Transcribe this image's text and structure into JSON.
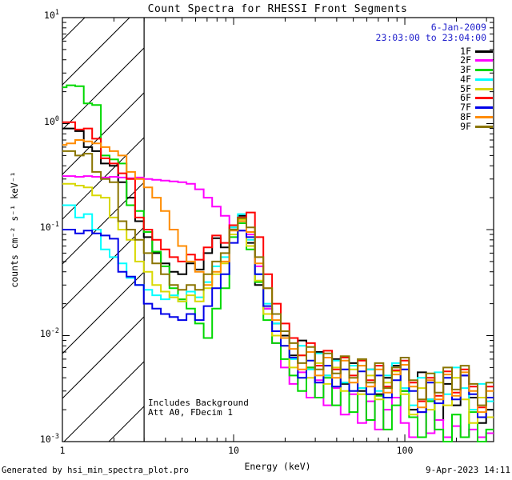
{
  "header": {
    "date": "6-Jan-2009",
    "time_range": "23:03:00 to 23:04:00",
    "text_color": "#2222cc"
  },
  "annotations": {
    "background_note": "Includes Background",
    "attenuator_note": "Att A0, FDecim 1"
  },
  "footer": {
    "generator": "Generated by hsi_min_spectra_plot.pro",
    "render_timestamp": "9-Apr-2023 14:11"
  },
  "chart_data": {
    "type": "line",
    "line_style": "histogram-step",
    "title": "Count Spectra for RHESSI Front Segments",
    "xlabel": "Energy (keV)",
    "ylabel": "counts cm⁻² s⁻¹ keV⁻¹",
    "x_scale": "log",
    "y_scale": "log",
    "xlim": [
      1,
      330
    ],
    "ylim": [
      0.001,
      10
    ],
    "grid": false,
    "legend_position": "top-right-outside",
    "x_ticks": [
      {
        "value": 1,
        "label": "1"
      },
      {
        "value": 10,
        "label": "10"
      },
      {
        "value": 100,
        "label": "100"
      }
    ],
    "y_ticks": [
      {
        "value": 10,
        "base": "10",
        "exponent": "1"
      },
      {
        "value": 1,
        "base": "10",
        "exponent": "0"
      },
      {
        "value": 0.1,
        "base": "10",
        "exponent": "-1"
      },
      {
        "value": 0.01,
        "base": "10",
        "exponent": "-2"
      },
      {
        "value": 0.001,
        "base": "10",
        "exponent": "-3"
      }
    ],
    "hatched_region_kev": [
      1,
      3
    ],
    "energies_kev": [
      1.0,
      1.12,
      1.26,
      1.41,
      1.58,
      1.78,
      2.0,
      2.24,
      2.51,
      2.82,
      3.16,
      3.55,
      3.98,
      4.47,
      5.01,
      5.62,
      6.31,
      7.08,
      7.94,
      8.91,
      10.0,
      11.2,
      12.6,
      14.1,
      15.8,
      17.8,
      20.0,
      22.4,
      25.1,
      28.2,
      31.6,
      35.5,
      39.8,
      44.7,
      50.1,
      56.2,
      63.1,
      70.8,
      79.4,
      89.1,
      100,
      112,
      126,
      141,
      158,
      178,
      200,
      224,
      251,
      282,
      316
    ],
    "series": [
      {
        "name": "1F",
        "color": "#000000",
        "values": [
          0.9,
          0.9,
          0.85,
          0.6,
          0.55,
          0.42,
          0.4,
          0.28,
          0.2,
          0.12,
          0.085,
          0.06,
          0.048,
          0.04,
          0.038,
          0.048,
          0.042,
          0.06,
          0.083,
          0.068,
          0.105,
          0.135,
          0.075,
          0.03,
          0.018,
          0.013,
          0.01,
          0.0065,
          0.009,
          0.005,
          0.007,
          0.0042,
          0.006,
          0.0035,
          0.0055,
          0.003,
          0.0048,
          0.0028,
          0.004,
          0.0052,
          0.003,
          0.002,
          0.0045,
          0.0025,
          0.0016,
          0.0035,
          0.0022,
          0.0042,
          0.0026,
          0.0015,
          0.002
        ]
      },
      {
        "name": "2F",
        "color": "#ff00ff",
        "values": [
          0.32,
          0.32,
          0.315,
          0.32,
          0.315,
          0.31,
          0.315,
          0.31,
          0.305,
          0.31,
          0.3,
          0.295,
          0.29,
          0.285,
          0.28,
          0.27,
          0.24,
          0.2,
          0.165,
          0.135,
          0.11,
          0.098,
          0.09,
          0.045,
          0.018,
          0.0085,
          0.005,
          0.0035,
          0.0045,
          0.0026,
          0.0038,
          0.0022,
          0.0032,
          0.0018,
          0.0028,
          0.0015,
          0.0024,
          0.0013,
          0.002,
          0.0026,
          0.0015,
          0.0011,
          0.0019,
          0.0012,
          0.0016,
          0.0011,
          0.0014,
          0.0011,
          0.0013,
          0.0011,
          0.0012
        ]
      },
      {
        "name": "3F",
        "color": "#00d800",
        "values": [
          2.2,
          2.3,
          2.25,
          1.55,
          1.5,
          0.5,
          0.46,
          0.42,
          0.17,
          0.15,
          0.095,
          0.062,
          0.045,
          0.028,
          0.022,
          0.018,
          0.013,
          0.0095,
          0.018,
          0.028,
          0.085,
          0.115,
          0.065,
          0.032,
          0.014,
          0.0085,
          0.006,
          0.0042,
          0.003,
          0.005,
          0.0026,
          0.004,
          0.0022,
          0.0036,
          0.0019,
          0.0032,
          0.0016,
          0.0027,
          0.0013,
          0.0022,
          0.003,
          0.0017,
          0.0011,
          0.0024,
          0.0013,
          0.001,
          0.0018,
          0.0011,
          0.0019,
          0.001,
          0.0013
        ]
      },
      {
        "name": "4F",
        "color": "#00ffff",
        "values": [
          0.17,
          0.17,
          0.13,
          0.14,
          0.1,
          0.065,
          0.055,
          0.048,
          0.035,
          0.03,
          0.027,
          0.024,
          0.022,
          0.024,
          0.021,
          0.026,
          0.023,
          0.032,
          0.045,
          0.055,
          0.105,
          0.14,
          0.08,
          0.038,
          0.02,
          0.013,
          0.0095,
          0.006,
          0.008,
          0.0048,
          0.0068,
          0.0042,
          0.0058,
          0.0036,
          0.0052,
          0.0032,
          0.0048,
          0.003,
          0.0042,
          0.0055,
          0.0032,
          0.0022,
          0.004,
          0.0025,
          0.0045,
          0.0028,
          0.005,
          0.0032,
          0.002,
          0.0035,
          0.0024
        ]
      },
      {
        "name": "5F",
        "color": "#d8d800",
        "values": [
          0.27,
          0.27,
          0.26,
          0.25,
          0.21,
          0.2,
          0.13,
          0.1,
          0.08,
          0.05,
          0.04,
          0.03,
          0.026,
          0.023,
          0.021,
          0.024,
          0.021,
          0.028,
          0.038,
          0.048,
          0.09,
          0.125,
          0.07,
          0.033,
          0.016,
          0.01,
          0.008,
          0.005,
          0.0065,
          0.004,
          0.0055,
          0.0035,
          0.005,
          0.003,
          0.0048,
          0.0028,
          0.0042,
          0.0025,
          0.0036,
          0.0046,
          0.0028,
          0.0018,
          0.0032,
          0.002,
          0.0036,
          0.0022,
          0.004,
          0.0025,
          0.0015,
          0.0026,
          0.0017
        ]
      },
      {
        "name": "6F",
        "color": "#ff0000",
        "values": [
          1.03,
          1.03,
          0.88,
          0.9,
          0.72,
          0.47,
          0.42,
          0.34,
          0.3,
          0.13,
          0.1,
          0.08,
          0.065,
          0.055,
          0.05,
          0.058,
          0.052,
          0.068,
          0.088,
          0.075,
          0.11,
          0.13,
          0.145,
          0.085,
          0.038,
          0.02,
          0.013,
          0.0095,
          0.0065,
          0.0085,
          0.0052,
          0.0072,
          0.0048,
          0.0062,
          0.0042,
          0.0058,
          0.0038,
          0.0052,
          0.0033,
          0.0047,
          0.0058,
          0.0036,
          0.0024,
          0.004,
          0.0027,
          0.0046,
          0.0029,
          0.0048,
          0.0033,
          0.0021,
          0.0033
        ]
      },
      {
        "name": "7F",
        "color": "#0000e8",
        "values": [
          0.1,
          0.1,
          0.092,
          0.098,
          0.092,
          0.088,
          0.082,
          0.04,
          0.036,
          0.03,
          0.02,
          0.018,
          0.016,
          0.015,
          0.014,
          0.016,
          0.014,
          0.019,
          0.028,
          0.038,
          0.075,
          0.098,
          0.085,
          0.038,
          0.019,
          0.011,
          0.008,
          0.0062,
          0.004,
          0.0058,
          0.0036,
          0.0052,
          0.0033,
          0.0048,
          0.003,
          0.0046,
          0.0028,
          0.0042,
          0.0026,
          0.0038,
          0.0048,
          0.003,
          0.0019,
          0.0036,
          0.0023,
          0.004,
          0.0025,
          0.0042,
          0.0028,
          0.0017,
          0.0026
        ]
      },
      {
        "name": "8F",
        "color": "#ff8c00",
        "values": [
          0.63,
          0.65,
          0.7,
          0.68,
          0.65,
          0.6,
          0.55,
          0.5,
          0.35,
          0.3,
          0.25,
          0.2,
          0.15,
          0.1,
          0.07,
          0.05,
          0.04,
          0.03,
          0.04,
          0.05,
          0.098,
          0.12,
          0.095,
          0.048,
          0.028,
          0.014,
          0.0095,
          0.0075,
          0.0048,
          0.007,
          0.0042,
          0.0062,
          0.004,
          0.0058,
          0.0036,
          0.0052,
          0.0033,
          0.0048,
          0.0029,
          0.0043,
          0.0053,
          0.0033,
          0.0021,
          0.0038,
          0.0025,
          0.0043,
          0.0027,
          0.0045,
          0.003,
          0.0019,
          0.003
        ]
      },
      {
        "name": "9F",
        "color": "#8a7500",
        "values": [
          0.55,
          0.55,
          0.5,
          0.52,
          0.35,
          0.3,
          0.28,
          0.12,
          0.1,
          0.08,
          0.06,
          0.048,
          0.038,
          0.03,
          0.027,
          0.03,
          0.027,
          0.038,
          0.05,
          0.06,
          0.1,
          0.128,
          0.105,
          0.055,
          0.028,
          0.016,
          0.011,
          0.0085,
          0.0055,
          0.0078,
          0.0048,
          0.0068,
          0.0044,
          0.0064,
          0.004,
          0.006,
          0.0036,
          0.0055,
          0.0032,
          0.005,
          0.0062,
          0.0038,
          0.0025,
          0.0044,
          0.0029,
          0.005,
          0.0031,
          0.0052,
          0.0035,
          0.0022,
          0.0036
        ]
      }
    ]
  }
}
